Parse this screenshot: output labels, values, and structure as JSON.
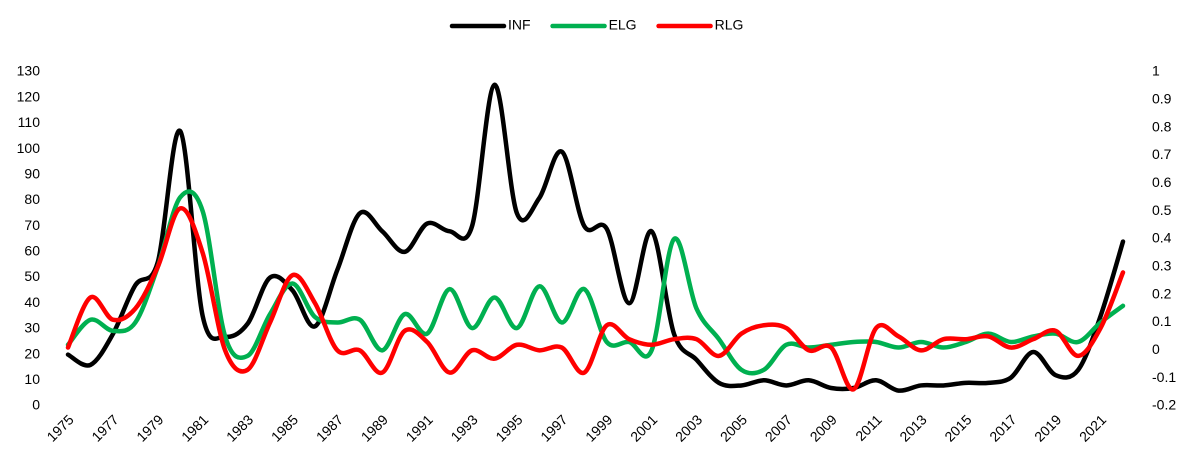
{
  "chart_data": {
    "type": "line",
    "smooth": true,
    "grid": false,
    "legend": "top",
    "x": [
      1975,
      1976,
      1977,
      1978,
      1979,
      1980,
      1981,
      1982,
      1983,
      1984,
      1985,
      1986,
      1987,
      1988,
      1989,
      1990,
      1991,
      1992,
      1993,
      1994,
      1995,
      1996,
      1997,
      1998,
      1999,
      2000,
      2001,
      2002,
      2003,
      2004,
      2005,
      2006,
      2007,
      2008,
      2009,
      2010,
      2011,
      2012,
      2013,
      2014,
      2015,
      2016,
      2017,
      2018,
      2019,
      2020,
      2021,
      2022
    ],
    "xlim": [
      1975,
      2022
    ],
    "xticks": [
      1975,
      1977,
      1979,
      1981,
      1983,
      1985,
      1987,
      1989,
      1991,
      1993,
      1995,
      1997,
      1999,
      2001,
      2003,
      2005,
      2007,
      2009,
      2011,
      2013,
      2015,
      2017,
      2019,
      2021
    ],
    "ylim": [
      0,
      130
    ],
    "yticks": [
      0,
      10,
      20,
      30,
      40,
      50,
      60,
      70,
      80,
      90,
      100,
      110,
      120,
      130
    ],
    "y2lim": [
      -0.2,
      1
    ],
    "y2ticks": [
      -0.2,
      -0.1,
      0,
      0.1,
      0.2,
      0.3,
      0.4,
      0.5,
      0.6,
      0.7,
      0.8,
      0.9,
      1
    ],
    "series": [
      {
        "name": "INF",
        "color": "#000000",
        "values": [
          20,
          16,
          28,
          47,
          56,
          107,
          35,
          27,
          32,
          50,
          45,
          31,
          53,
          75,
          68,
          60,
          71,
          68,
          70,
          125,
          75,
          81,
          99,
          70,
          69,
          40,
          68,
          28,
          18,
          9,
          8,
          10,
          8,
          10,
          7,
          7,
          10,
          6,
          8,
          8,
          9,
          9,
          11,
          21,
          12,
          14,
          35,
          64
        ]
      },
      {
        "name": "ELG",
        "color": "#00b050",
        "axis": "y2",
        "values": [
          0.02,
          0.11,
          0.07,
          0.1,
          0.3,
          0.55,
          0.5,
          0.05,
          -0.02,
          0.13,
          0.24,
          0.12,
          0.1,
          0.11,
          0.0,
          0.13,
          0.06,
          0.22,
          0.08,
          0.19,
          0.08,
          0.23,
          0.1,
          0.22,
          0.03,
          0.03,
          0.0,
          0.4,
          0.15,
          0.04,
          -0.07,
          -0.07,
          0.02,
          0.01,
          0.02,
          0.03,
          0.03,
          0.01,
          0.03,
          0.01,
          0.03,
          0.06,
          0.03,
          0.05,
          0.06,
          0.03,
          0.1,
          0.16
        ]
      },
      {
        "name": "RLG",
        "color": "#ff0000",
        "axis": "y2",
        "values": [
          0.01,
          0.19,
          0.11,
          0.15,
          0.3,
          0.51,
          0.35,
          0.0,
          -0.07,
          0.1,
          0.27,
          0.17,
          0.0,
          0.0,
          -0.08,
          0.07,
          0.03,
          -0.08,
          0.0,
          -0.03,
          0.02,
          0.0,
          0.01,
          -0.08,
          0.09,
          0.04,
          0.02,
          0.04,
          0.04,
          -0.02,
          0.06,
          0.09,
          0.08,
          0.0,
          0.01,
          -0.14,
          0.08,
          0.05,
          0.0,
          0.04,
          0.04,
          0.05,
          0.01,
          0.04,
          0.07,
          -0.02,
          0.08,
          0.28
        ]
      }
    ]
  }
}
